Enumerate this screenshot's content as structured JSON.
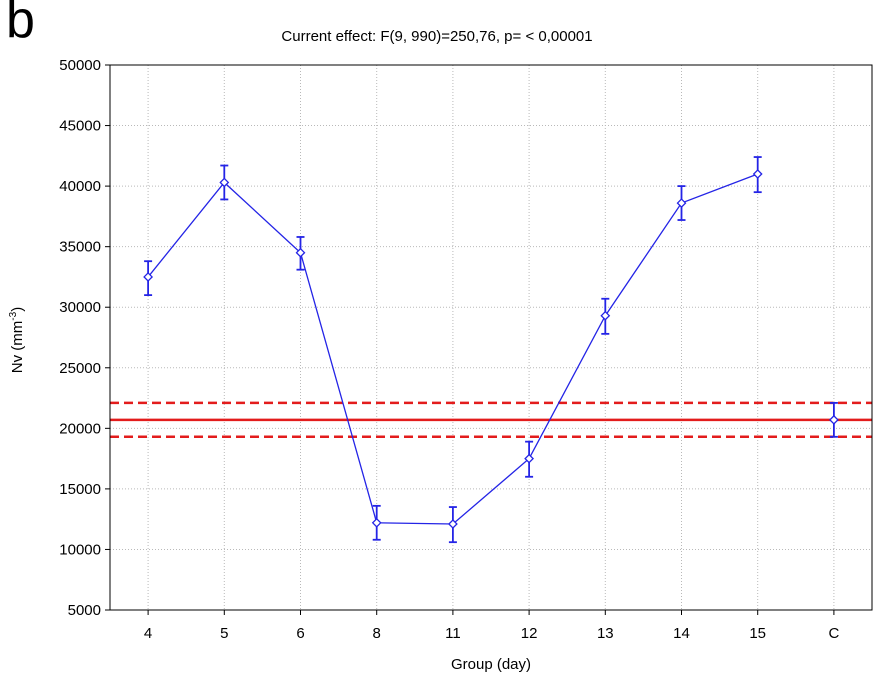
{
  "panel_label": "b",
  "chart_data": {
    "type": "line",
    "title": "Current effect: F(9, 990)=250,76, p= < 0,00001",
    "xlabel": "Group (day)",
    "ylabel_base": "Nv (mm",
    "ylabel_sup": "-3",
    "ylabel_end": ")",
    "categories": [
      "4",
      "5",
      "6",
      "8",
      "11",
      "12",
      "13",
      "14",
      "15",
      "C"
    ],
    "ylim": [
      5000,
      50000
    ],
    "yticks": [
      5000,
      10000,
      15000,
      20000,
      25000,
      30000,
      35000,
      40000,
      45000,
      50000
    ],
    "grid": true,
    "series": [
      {
        "color": "#2424e6",
        "marker": "diamond",
        "connected_points": 9,
        "values": [
          32500,
          40300,
          34500,
          12200,
          12100,
          17500,
          29300,
          38600,
          41000,
          20700
        ],
        "error_low": [
          31000,
          38900,
          33100,
          10800,
          10600,
          16000,
          27800,
          37200,
          39500,
          19300
        ],
        "error_high": [
          33800,
          41700,
          35800,
          13600,
          13500,
          18900,
          30700,
          40000,
          42400,
          22100
        ]
      }
    ],
    "reference_lines": [
      {
        "y": 20700,
        "style": "solid",
        "color": "#e31c1c"
      },
      {
        "y": 22100,
        "style": "dashed",
        "color": "#e31c1c"
      },
      {
        "y": 19300,
        "style": "dashed",
        "color": "#e31c1c"
      }
    ]
  }
}
